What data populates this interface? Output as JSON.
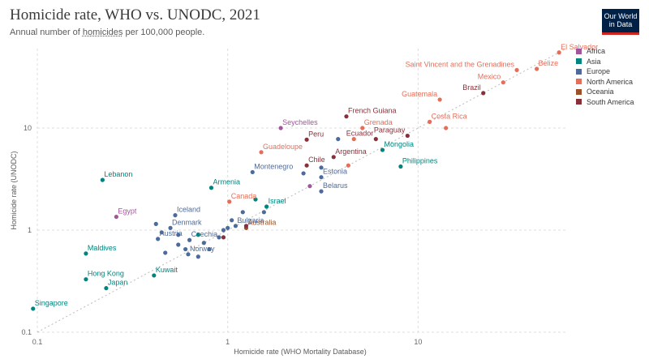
{
  "header": {
    "title": "Homicide rate, WHO vs. UNODC, 2021",
    "subtitle_pre": "Annual number of ",
    "subtitle_link": "homicides",
    "subtitle_post": " per 100,000 people.",
    "logo_line1": "Our World",
    "logo_line2": "in Data"
  },
  "colors": {
    "Africa": "#a2559c",
    "Asia": "#00847e",
    "Europe": "#4c6a9c",
    "North America": "#e56e5a",
    "Oceania": "#9a5129",
    "South America": "#883039"
  },
  "chart_data": {
    "type": "scatter",
    "title": "Homicide rate, WHO vs. UNODC, 2021",
    "xlabel": "Homicide rate (WHO Mortality Database)",
    "ylabel": "Homicide rate (UNODC)",
    "xscale": "log",
    "yscale": "log",
    "xlim": [
      0.1,
      60
    ],
    "ylim": [
      0.1,
      60
    ],
    "xticks": [
      {
        "v": 0.1,
        "label": "0.1"
      },
      {
        "v": 1,
        "label": "1"
      },
      {
        "v": 10,
        "label": "10"
      }
    ],
    "yticks": [
      {
        "v": 0.1,
        "label": "0.1"
      },
      {
        "v": 1,
        "label": "1"
      },
      {
        "v": 10,
        "label": "10"
      }
    ],
    "grid": true,
    "diagonal": true,
    "legend": {
      "position": "right",
      "entries": [
        "Africa",
        "Asia",
        "Europe",
        "North America",
        "Oceania",
        "South America"
      ]
    },
    "points": [
      {
        "label": "El Salvador",
        "region": "North America",
        "x": 55,
        "y": 55
      },
      {
        "label": "Belize",
        "region": "North America",
        "x": 42,
        "y": 38
      },
      {
        "label": "Saint Vincent and the Grenadines",
        "region": "North America",
        "x": 33,
        "y": 37
      },
      {
        "label": "Mexico",
        "region": "North America",
        "x": 28,
        "y": 28
      },
      {
        "label": "Brazil",
        "region": "South America",
        "x": 22,
        "y": 22
      },
      {
        "label": "Guatemala",
        "region": "North America",
        "x": 13,
        "y": 19
      },
      {
        "label": "French Guiana",
        "region": "South America",
        "x": 4.2,
        "y": 13
      },
      {
        "label": "Costa Rica",
        "region": "North America",
        "x": 11.5,
        "y": 11.5
      },
      {
        "label": "Grenada",
        "region": "North America",
        "x": 5.1,
        "y": 10
      },
      {
        "label": "Seychelles",
        "region": "Africa",
        "x": 1.9,
        "y": 10
      },
      {
        "label": "Peru",
        "region": "South America",
        "x": 2.6,
        "y": 7.7
      },
      {
        "label": "Ecuador",
        "region": "South America",
        "x": 6,
        "y": 7.8
      },
      {
        "label": "Paraguay",
        "region": "South America",
        "x": 8.8,
        "y": 8.4
      },
      {
        "label": "Mongolia",
        "region": "Asia",
        "x": 6.5,
        "y": 6.1
      },
      {
        "label": "Guadeloupe",
        "region": "North America",
        "x": 1.5,
        "y": 5.8
      },
      {
        "label": "Argentina",
        "region": "South America",
        "x": 3.6,
        "y": 5.2
      },
      {
        "label": "Philippines",
        "region": "Asia",
        "x": 8.1,
        "y": 4.2
      },
      {
        "label": "Chile",
        "region": "South America",
        "x": 2.6,
        "y": 4.3
      },
      {
        "label": "Montenegro",
        "region": "Europe",
        "x": 1.35,
        "y": 3.7
      },
      {
        "label": "Estonia",
        "region": "Europe",
        "x": 3.1,
        "y": 3.3
      },
      {
        "label": "Lebanon",
        "region": "Asia",
        "x": 0.22,
        "y": 3.1
      },
      {
        "label": "Armenia",
        "region": "Asia",
        "x": 0.82,
        "y": 2.6
      },
      {
        "label": "Belarus",
        "region": "Europe",
        "x": 3.1,
        "y": 2.4
      },
      {
        "label": "Canada",
        "region": "North America",
        "x": 1.02,
        "y": 1.9
      },
      {
        "label": "Egypt",
        "region": "Africa",
        "x": 0.26,
        "y": 1.35
      },
      {
        "label": "Iceland",
        "region": "Europe",
        "x": 0.53,
        "y": 1.4
      },
      {
        "label": "Israel",
        "region": "Asia",
        "x": 1.6,
        "y": 1.7
      },
      {
        "label": "Bulgaria",
        "region": "Europe",
        "x": 1.1,
        "y": 1.1
      },
      {
        "label": "Denmark",
        "region": "Europe",
        "x": 0.5,
        "y": 1.05
      },
      {
        "label": "Australia",
        "region": "Oceania",
        "x": 1.25,
        "y": 1.05
      },
      {
        "label": "Austria",
        "region": "Europe",
        "x": 0.43,
        "y": 0.82
      },
      {
        "label": "Czechia",
        "region": "Europe",
        "x": 0.63,
        "y": 0.8
      },
      {
        "label": "Norway",
        "region": "Europe",
        "x": 0.62,
        "y": 0.58
      },
      {
        "label": "Maldives",
        "region": "Asia",
        "x": 0.18,
        "y": 0.59
      },
      {
        "label": "Kuwait",
        "region": "Asia",
        "x": 0.41,
        "y": 0.36
      },
      {
        "label": "Hong Kong",
        "region": "Asia",
        "x": 0.18,
        "y": 0.33
      },
      {
        "label": "Japan",
        "region": "Asia",
        "x": 0.23,
        "y": 0.27
      },
      {
        "label": "Singapore",
        "region": "Asia",
        "x": 0.095,
        "y": 0.17
      },
      {
        "label": "",
        "region": "Europe",
        "x": 3.8,
        "y": 7.8
      },
      {
        "label": "",
        "region": "North America",
        "x": 4.6,
        "y": 7.8
      },
      {
        "label": "",
        "region": "North America",
        "x": 14,
        "y": 10
      },
      {
        "label": "",
        "region": "North America",
        "x": 4.3,
        "y": 4.3
      },
      {
        "label": "",
        "region": "Europe",
        "x": 3.1,
        "y": 4.1
      },
      {
        "label": "",
        "region": "Europe",
        "x": 2.5,
        "y": 3.6
      },
      {
        "label": "",
        "region": "Africa",
        "x": 2.7,
        "y": 2.7
      },
      {
        "label": "",
        "region": "Asia",
        "x": 1.4,
        "y": 2
      },
      {
        "label": "",
        "region": "Europe",
        "x": 1.55,
        "y": 1.5
      },
      {
        "label": "",
        "region": "Europe",
        "x": 1.2,
        "y": 1.5
      },
      {
        "label": "",
        "region": "Europe",
        "x": 1.05,
        "y": 1.25
      },
      {
        "label": "",
        "region": "Europe",
        "x": 1.0,
        "y": 1.05
      },
      {
        "label": "",
        "region": "Europe",
        "x": 0.95,
        "y": 1.0
      },
      {
        "label": "",
        "region": "Europe",
        "x": 0.9,
        "y": 0.85
      },
      {
        "label": "",
        "region": "Europe",
        "x": 0.75,
        "y": 0.75
      },
      {
        "label": "",
        "region": "Europe",
        "x": 0.8,
        "y": 0.65
      },
      {
        "label": "",
        "region": "Europe",
        "x": 0.55,
        "y": 0.72
      },
      {
        "label": "",
        "region": "Europe",
        "x": 0.45,
        "y": 0.95
      },
      {
        "label": "",
        "region": "Europe",
        "x": 0.47,
        "y": 0.6
      },
      {
        "label": "",
        "region": "Europe",
        "x": 0.7,
        "y": 0.55
      },
      {
        "label": "",
        "region": "Europe",
        "x": 0.6,
        "y": 0.65
      },
      {
        "label": "",
        "region": "Europe",
        "x": 0.42,
        "y": 1.15
      },
      {
        "label": "",
        "region": "Europe",
        "x": 0.55,
        "y": 0.9
      },
      {
        "label": "",
        "region": "Asia",
        "x": 0.7,
        "y": 0.9
      },
      {
        "label": "",
        "region": "South America",
        "x": 1.25,
        "y": 1.1
      },
      {
        "label": "",
        "region": "South America",
        "x": 0.95,
        "y": 0.85
      }
    ]
  }
}
